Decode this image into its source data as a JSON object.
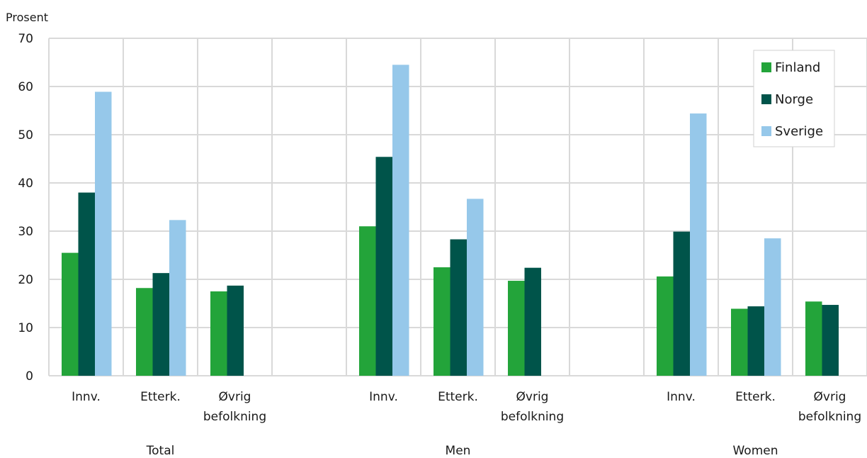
{
  "chart_data": {
    "type": "bar",
    "ylabel": "Prosent",
    "ylim": [
      0,
      70
    ],
    "yticks": [
      0,
      10,
      20,
      30,
      40,
      50,
      60,
      70
    ],
    "grid": true,
    "legend_position": "top-right",
    "groups": [
      {
        "name": "Total",
        "categories": [
          {
            "label": [
              "Innv."
            ],
            "values": [
              25.5,
              38.0,
              58.9
            ]
          },
          {
            "label": [
              "Etterk."
            ],
            "values": [
              18.2,
              21.3,
              32.3
            ]
          },
          {
            "label": [
              "Øvrig",
              "befolkning"
            ],
            "values": [
              17.5,
              18.7,
              null
            ]
          }
        ]
      },
      {
        "name": "Men",
        "categories": [
          {
            "label": [
              "Innv."
            ],
            "values": [
              31.0,
              45.4,
              64.5
            ]
          },
          {
            "label": [
              "Etterk."
            ],
            "values": [
              22.5,
              28.3,
              36.7
            ]
          },
          {
            "label": [
              "Øvrig",
              "befolkning"
            ],
            "values": [
              19.7,
              22.4,
              null
            ]
          }
        ]
      },
      {
        "name": "Women",
        "categories": [
          {
            "label": [
              "Innv."
            ],
            "values": [
              20.6,
              29.9,
              54.4
            ]
          },
          {
            "label": [
              "Etterk."
            ],
            "values": [
              13.9,
              14.4,
              28.5
            ]
          },
          {
            "label": [
              "Øvrig",
              "befolkning"
            ],
            "values": [
              15.4,
              14.7,
              null
            ]
          }
        ]
      }
    ],
    "series": [
      {
        "name": "Finland",
        "color": "#23a43a"
      },
      {
        "name": "Norge",
        "color": "#00544a"
      },
      {
        "name": "Sverige",
        "color": "#96c8ea"
      }
    ]
  }
}
